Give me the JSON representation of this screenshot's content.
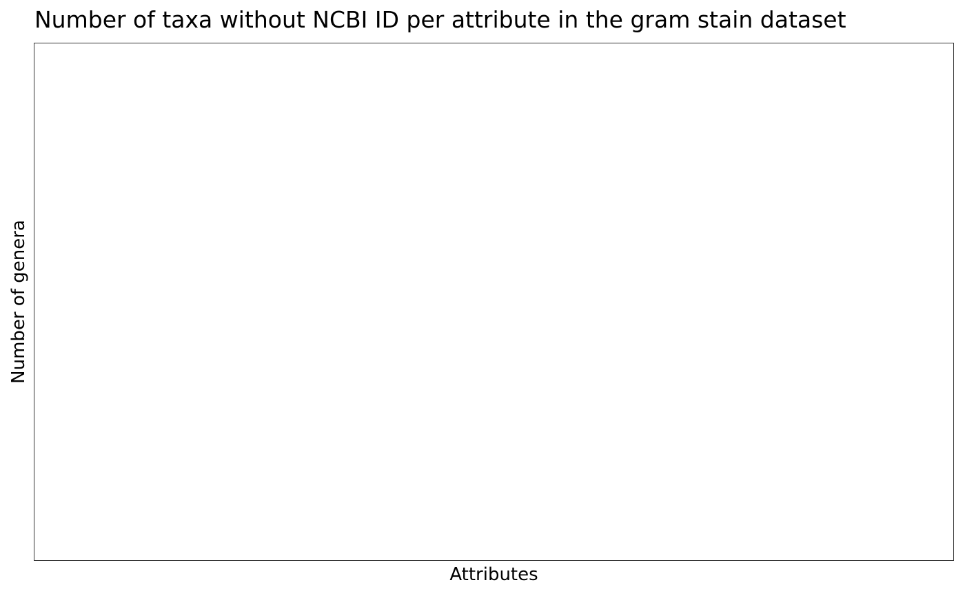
{
  "chart_data": {
    "type": "bar",
    "title": "Number of taxa without NCBI ID per attribute in the gram stain dataset",
    "xlabel": "Attributes",
    "ylabel": "Number of genera",
    "categories": [],
    "values": [],
    "grid": false,
    "legend": "none"
  }
}
